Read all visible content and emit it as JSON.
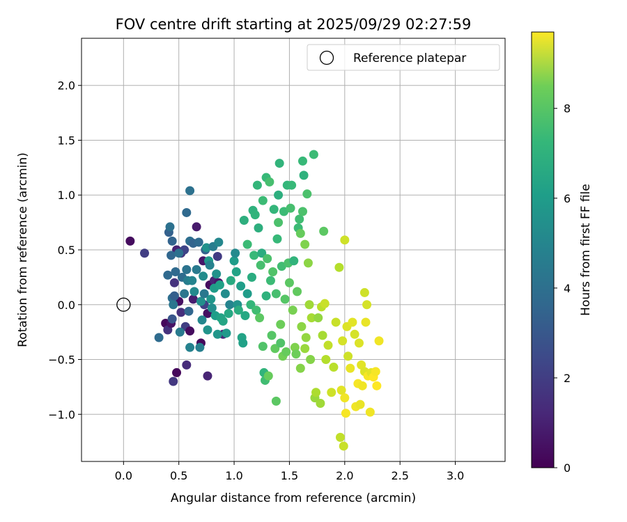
{
  "chart_data": {
    "type": "scatter",
    "title": "FOV centre drift starting at 2025/09/29 02:27:59",
    "xlabel": "Angular distance from reference (arcmin)",
    "ylabel": "Rotation from reference (arcmin)",
    "xlim": [
      -0.38,
      3.45
    ],
    "ylim": [
      -1.43,
      2.43
    ],
    "xticks": [
      0.0,
      0.5,
      1.0,
      1.5,
      2.0,
      2.5,
      3.0
    ],
    "xtick_labels": [
      "0.0",
      "0.5",
      "1.0",
      "1.5",
      "2.0",
      "2.5",
      "3.0"
    ],
    "yticks": [
      -1.0,
      -0.5,
      0.0,
      0.5,
      1.0,
      1.5,
      2.0
    ],
    "ytick_labels": [
      "−1.0",
      "−0.5",
      "0.0",
      "0.5",
      "1.0",
      "1.5",
      "2.0"
    ],
    "grid": true,
    "legend": {
      "placement": "upper-right",
      "label": "Reference platepar"
    },
    "reference_point": {
      "x": 0.0,
      "y": 0.0
    },
    "colorbar": {
      "label": "Hours from first FF file",
      "colormap": "viridis",
      "range": [
        0,
        9.7
      ],
      "ticks": [
        0,
        2,
        4,
        6,
        8
      ],
      "tick_labels": [
        "0",
        "2",
        "4",
        "6",
        "8"
      ]
    },
    "colors": {
      "axis": "#000000",
      "grid": "#b0b0b0",
      "reference_marker": "#000000"
    },
    "points": [
      {
        "x": 0.06,
        "y": 0.58,
        "c": 0.3
      },
      {
        "x": 0.19,
        "y": 0.47,
        "c": 1.8
      },
      {
        "x": 0.38,
        "y": -0.17,
        "c": 0.2
      },
      {
        "x": 0.4,
        "y": -0.23,
        "c": 1.4
      },
      {
        "x": 0.43,
        "y": -0.17,
        "c": 0.5
      },
      {
        "x": 0.45,
        "y": -0.7,
        "c": 1.6
      },
      {
        "x": 0.48,
        "y": -0.62,
        "c": 0.2
      },
      {
        "x": 0.5,
        "y": 0.03,
        "c": 0.4
      },
      {
        "x": 0.46,
        "y": 0.2,
        "c": 1.4
      },
      {
        "x": 0.48,
        "y": 0.5,
        "c": 0.9
      },
      {
        "x": 0.52,
        "y": 0.47,
        "c": 1.5
      },
      {
        "x": 0.55,
        "y": 0.5,
        "c": 2.0
      },
      {
        "x": 0.57,
        "y": -0.55,
        "c": 1.2
      },
      {
        "x": 0.56,
        "y": -0.2,
        "c": 1.8
      },
      {
        "x": 0.6,
        "y": -0.24,
        "c": 0.3
      },
      {
        "x": 0.66,
        "y": 0.71,
        "c": 0.7
      },
      {
        "x": 0.7,
        "y": -0.35,
        "c": 0.2
      },
      {
        "x": 0.72,
        "y": 0.4,
        "c": 0.6
      },
      {
        "x": 0.76,
        "y": -0.08,
        "c": 0.4
      },
      {
        "x": 0.78,
        "y": 0.18,
        "c": 0.3
      },
      {
        "x": 0.82,
        "y": 0.22,
        "c": 1.0
      },
      {
        "x": 0.85,
        "y": 0.44,
        "c": 1.7
      },
      {
        "x": 0.76,
        "y": -0.65,
        "c": 1.0
      },
      {
        "x": 0.9,
        "y": -0.27,
        "c": 1.1
      },
      {
        "x": 0.86,
        "y": 0.2,
        "c": 0.6
      },
      {
        "x": 0.63,
        "y": 0.05,
        "c": 0.8
      },
      {
        "x": 0.52,
        "y": -0.07,
        "c": 1.3
      },
      {
        "x": 0.73,
        "y": 0.0,
        "c": 1.9
      },
      {
        "x": 0.32,
        "y": -0.3,
        "c": 3.4
      },
      {
        "x": 0.4,
        "y": 0.27,
        "c": 3.3
      },
      {
        "x": 0.41,
        "y": 0.66,
        "c": 3.0
      },
      {
        "x": 0.42,
        "y": 0.71,
        "c": 3.6
      },
      {
        "x": 0.43,
        "y": 0.45,
        "c": 3.2
      },
      {
        "x": 0.44,
        "y": 0.58,
        "c": 3.1
      },
      {
        "x": 0.44,
        "y": 0.06,
        "c": 3.5
      },
      {
        "x": 0.44,
        "y": -0.13,
        "c": 2.6
      },
      {
        "x": 0.45,
        "y": 0.0,
        "c": 3.8
      },
      {
        "x": 0.46,
        "y": 0.08,
        "c": 2.9
      },
      {
        "x": 0.47,
        "y": 0.3,
        "c": 3.3
      },
      {
        "x": 0.5,
        "y": 0.47,
        "c": 3.6
      },
      {
        "x": 0.51,
        "y": -0.25,
        "c": 4.0
      },
      {
        "x": 0.53,
        "y": 0.25,
        "c": 3.4
      },
      {
        "x": 0.55,
        "y": 0.1,
        "c": 3.8
      },
      {
        "x": 0.57,
        "y": 0.84,
        "c": 3.3
      },
      {
        "x": 0.57,
        "y": 0.32,
        "c": 3.7
      },
      {
        "x": 0.58,
        "y": 0.22,
        "c": 4.1
      },
      {
        "x": 0.59,
        "y": -0.06,
        "c": 3.2
      },
      {
        "x": 0.6,
        "y": -0.39,
        "c": 4.3
      },
      {
        "x": 0.6,
        "y": 1.04,
        "c": 3.6
      },
      {
        "x": 0.6,
        "y": 0.58,
        "c": 3.5
      },
      {
        "x": 0.62,
        "y": 0.22,
        "c": 4.4
      },
      {
        "x": 0.63,
        "y": 0.56,
        "c": 3.1
      },
      {
        "x": 0.64,
        "y": 0.12,
        "c": 4.6
      },
      {
        "x": 0.66,
        "y": 0.32,
        "c": 4.0
      },
      {
        "x": 0.68,
        "y": 0.57,
        "c": 3.3
      },
      {
        "x": 0.69,
        "y": -0.39,
        "c": 4.2
      },
      {
        "x": 0.7,
        "y": 0.03,
        "c": 4.8
      },
      {
        "x": 0.71,
        "y": -0.14,
        "c": 4.5
      },
      {
        "x": 0.72,
        "y": 0.26,
        "c": 4.7
      },
      {
        "x": 0.73,
        "y": 0.1,
        "c": 3.9
      },
      {
        "x": 0.74,
        "y": 0.5,
        "c": 3.0
      },
      {
        "x": 0.75,
        "y": 0.52,
        "c": 4.9
      },
      {
        "x": 0.76,
        "y": -0.23,
        "c": 5.0
      },
      {
        "x": 0.77,
        "y": 0.4,
        "c": 5.2
      },
      {
        "x": 0.78,
        "y": 0.36,
        "c": 4.3
      },
      {
        "x": 0.79,
        "y": 0.05,
        "c": 5.1
      },
      {
        "x": 0.8,
        "y": -0.03,
        "c": 4.8
      },
      {
        "x": 0.81,
        "y": 0.53,
        "c": 4.1
      },
      {
        "x": 0.82,
        "y": 0.15,
        "c": 5.3
      },
      {
        "x": 0.83,
        "y": -0.1,
        "c": 5.4
      },
      {
        "x": 0.84,
        "y": 0.28,
        "c": 4.9
      },
      {
        "x": 0.85,
        "y": -0.27,
        "c": 5.1
      },
      {
        "x": 0.86,
        "y": 0.57,
        "c": 4.5
      },
      {
        "x": 0.87,
        "y": 0.18,
        "c": 5.5
      },
      {
        "x": 0.88,
        "y": -0.12,
        "c": 5.6
      },
      {
        "x": 0.9,
        "y": -0.15,
        "c": 5.7
      },
      {
        "x": 0.92,
        "y": 0.1,
        "c": 4.7
      },
      {
        "x": 0.93,
        "y": -0.26,
        "c": 5.2
      },
      {
        "x": 0.95,
        "y": -0.08,
        "c": 5.8
      },
      {
        "x": 0.96,
        "y": 0.0,
        "c": 4.4
      },
      {
        "x": 0.97,
        "y": 0.22,
        "c": 5.9
      },
      {
        "x": 1.0,
        "y": 0.4,
        "c": 5.3
      },
      {
        "x": 1.01,
        "y": 0.47,
        "c": 4.6
      },
      {
        "x": 1.02,
        "y": 0.3,
        "c": 5.6
      },
      {
        "x": 1.03,
        "y": 0.0,
        "c": 5.0
      },
      {
        "x": 1.04,
        "y": -0.05,
        "c": 6.0
      },
      {
        "x": 1.06,
        "y": 0.17,
        "c": 5.4
      },
      {
        "x": 1.07,
        "y": -0.3,
        "c": 5.6
      },
      {
        "x": 1.08,
        "y": -0.35,
        "c": 5.5
      },
      {
        "x": 1.09,
        "y": 0.77,
        "c": 6.1
      },
      {
        "x": 1.1,
        "y": -0.1,
        "c": 5.8
      },
      {
        "x": 1.12,
        "y": 0.1,
        "c": 5.3
      },
      {
        "x": 1.12,
        "y": 0.55,
        "c": 6.6
      },
      {
        "x": 1.15,
        "y": 0.0,
        "c": 6.4
      },
      {
        "x": 1.16,
        "y": 0.25,
        "c": 6.0
      },
      {
        "x": 1.17,
        "y": 0.86,
        "c": 6.2
      },
      {
        "x": 1.18,
        "y": 0.45,
        "c": 6.5
      },
      {
        "x": 1.19,
        "y": 0.82,
        "c": 6.3
      },
      {
        "x": 1.2,
        "y": -0.05,
        "c": 6.7
      },
      {
        "x": 1.21,
        "y": 1.09,
        "c": 6.4
      },
      {
        "x": 1.22,
        "y": 0.7,
        "c": 6.1
      },
      {
        "x": 1.23,
        "y": -0.12,
        "c": 7.2
      },
      {
        "x": 1.24,
        "y": 0.36,
        "c": 6.8
      },
      {
        "x": 1.25,
        "y": 0.47,
        "c": 6.0
      },
      {
        "x": 1.26,
        "y": 0.95,
        "c": 6.6
      },
      {
        "x": 1.26,
        "y": -0.38,
        "c": 7.0
      },
      {
        "x": 1.27,
        "y": -0.62,
        "c": 6.3
      },
      {
        "x": 1.28,
        "y": -0.69,
        "c": 6.7
      },
      {
        "x": 1.29,
        "y": 0.08,
        "c": 6.2
      },
      {
        "x": 1.29,
        "y": 1.16,
        "c": 6.5
      },
      {
        "x": 1.3,
        "y": 0.42,
        "c": 6.9
      },
      {
        "x": 1.31,
        "y": -0.65,
        "c": 7.4
      },
      {
        "x": 1.32,
        "y": 1.12,
        "c": 6.8
      },
      {
        "x": 1.33,
        "y": 0.22,
        "c": 6.6
      },
      {
        "x": 1.34,
        "y": -0.28,
        "c": 7.1
      },
      {
        "x": 1.35,
        "y": 0.3,
        "c": 7.0
      },
      {
        "x": 1.36,
        "y": 0.87,
        "c": 6.4
      },
      {
        "x": 1.37,
        "y": -0.4,
        "c": 7.3
      },
      {
        "x": 1.38,
        "y": 0.1,
        "c": 6.8
      },
      {
        "x": 1.38,
        "y": -0.88,
        "c": 7.2
      },
      {
        "x": 1.39,
        "y": 0.6,
        "c": 6.5
      },
      {
        "x": 1.4,
        "y": 0.75,
        "c": 6.9
      },
      {
        "x": 1.4,
        "y": 1.0,
        "c": 6.1
      },
      {
        "x": 1.41,
        "y": 1.29,
        "c": 6.3
      },
      {
        "x": 1.42,
        "y": -0.18,
        "c": 7.5
      },
      {
        "x": 1.42,
        "y": -0.35,
        "c": 7.0
      },
      {
        "x": 1.43,
        "y": 0.35,
        "c": 6.7
      },
      {
        "x": 1.44,
        "y": -0.47,
        "c": 7.6
      },
      {
        "x": 1.45,
        "y": 0.85,
        "c": 6.6
      },
      {
        "x": 1.46,
        "y": 0.05,
        "c": 7.1
      },
      {
        "x": 1.47,
        "y": -0.43,
        "c": 7.4
      },
      {
        "x": 1.48,
        "y": 1.09,
        "c": 6.4
      },
      {
        "x": 1.49,
        "y": 0.38,
        "c": 6.9
      },
      {
        "x": 1.5,
        "y": 0.2,
        "c": 7.2
      },
      {
        "x": 1.51,
        "y": 0.88,
        "c": 6.8
      },
      {
        "x": 1.52,
        "y": 1.09,
        "c": 6.5
      },
      {
        "x": 1.53,
        "y": -0.05,
        "c": 7.7
      },
      {
        "x": 1.54,
        "y": 0.4,
        "c": 6.3
      },
      {
        "x": 1.55,
        "y": -0.39,
        "c": 7.8
      },
      {
        "x": 1.56,
        "y": -0.45,
        "c": 7.5
      },
      {
        "x": 1.57,
        "y": 0.12,
        "c": 7.3
      },
      {
        "x": 1.58,
        "y": 0.7,
        "c": 6.6
      },
      {
        "x": 1.59,
        "y": 0.78,
        "c": 6.7
      },
      {
        "x": 1.6,
        "y": -0.58,
        "c": 7.9
      },
      {
        "x": 1.6,
        "y": 0.65,
        "c": 7.4
      },
      {
        "x": 1.61,
        "y": -0.2,
        "c": 8.0
      },
      {
        "x": 1.62,
        "y": 0.85,
        "c": 6.9
      },
      {
        "x": 1.62,
        "y": 1.31,
        "c": 6.5
      },
      {
        "x": 1.63,
        "y": 1.18,
        "c": 6.2
      },
      {
        "x": 1.64,
        "y": 0.55,
        "c": 7.8
      },
      {
        "x": 1.64,
        "y": -0.4,
        "c": 8.2
      },
      {
        "x": 1.65,
        "y": -0.3,
        "c": 8.1
      },
      {
        "x": 1.66,
        "y": 1.01,
        "c": 6.9
      },
      {
        "x": 1.67,
        "y": 0.38,
        "c": 8.0
      },
      {
        "x": 1.68,
        "y": 0.0,
        "c": 8.3
      },
      {
        "x": 1.69,
        "y": -0.5,
        "c": 7.9
      },
      {
        "x": 1.7,
        "y": -0.12,
        "c": 8.4
      },
      {
        "x": 1.72,
        "y": 1.37,
        "c": 6.6
      },
      {
        "x": 1.73,
        "y": -0.85,
        "c": 8.2
      },
      {
        "x": 1.74,
        "y": -0.8,
        "c": 8.5
      },
      {
        "x": 1.76,
        "y": -0.12,
        "c": 8.1
      },
      {
        "x": 1.78,
        "y": -0.9,
        "c": 8.3
      },
      {
        "x": 1.79,
        "y": -0.02,
        "c": 8.7
      },
      {
        "x": 1.8,
        "y": -0.28,
        "c": 8.4
      },
      {
        "x": 1.81,
        "y": 0.67,
        "c": 7.2
      },
      {
        "x": 1.82,
        "y": 0.01,
        "c": 8.9
      },
      {
        "x": 1.83,
        "y": -0.5,
        "c": 8.6
      },
      {
        "x": 1.85,
        "y": -0.37,
        "c": 8.8
      },
      {
        "x": 1.88,
        "y": -0.8,
        "c": 9.0
      },
      {
        "x": 1.9,
        "y": -0.57,
        "c": 8.7
      },
      {
        "x": 1.92,
        "y": -0.16,
        "c": 8.9
      },
      {
        "x": 1.95,
        "y": 0.34,
        "c": 8.6
      },
      {
        "x": 1.96,
        "y": -1.21,
        "c": 8.8
      },
      {
        "x": 1.97,
        "y": -0.78,
        "c": 9.3
      },
      {
        "x": 1.98,
        "y": -0.33,
        "c": 9.1
      },
      {
        "x": 1.99,
        "y": -1.29,
        "c": 8.9
      },
      {
        "x": 2.0,
        "y": 0.59,
        "c": 9.0
      },
      {
        "x": 2.0,
        "y": -0.85,
        "c": 9.5
      },
      {
        "x": 2.01,
        "y": -0.99,
        "c": 9.6
      },
      {
        "x": 2.02,
        "y": -0.2,
        "c": 9.2
      },
      {
        "x": 2.03,
        "y": -0.47,
        "c": 9.0
      },
      {
        "x": 2.05,
        "y": -0.58,
        "c": 9.4
      },
      {
        "x": 2.07,
        "y": -0.16,
        "c": 9.3
      },
      {
        "x": 2.09,
        "y": -0.27,
        "c": 9.1
      },
      {
        "x": 2.1,
        "y": -0.93,
        "c": 9.5
      },
      {
        "x": 2.12,
        "y": -0.72,
        "c": 9.6
      },
      {
        "x": 2.13,
        "y": -0.35,
        "c": 9.2
      },
      {
        "x": 2.14,
        "y": -0.91,
        "c": 9.4
      },
      {
        "x": 2.15,
        "y": -0.55,
        "c": 9.3
      },
      {
        "x": 2.16,
        "y": -0.74,
        "c": 9.5
      },
      {
        "x": 2.18,
        "y": 0.11,
        "c": 9.0
      },
      {
        "x": 2.18,
        "y": -0.61,
        "c": 9.2
      },
      {
        "x": 2.19,
        "y": -0.16,
        "c": 9.4
      },
      {
        "x": 2.2,
        "y": 0.0,
        "c": 9.1
      },
      {
        "x": 2.21,
        "y": -0.65,
        "c": 9.6
      },
      {
        "x": 2.23,
        "y": -0.98,
        "c": 9.5
      },
      {
        "x": 2.24,
        "y": -0.62,
        "c": 9.3
      },
      {
        "x": 2.26,
        "y": -0.66,
        "c": 9.7
      },
      {
        "x": 2.28,
        "y": -0.61,
        "c": 9.6
      },
      {
        "x": 2.29,
        "y": -0.74,
        "c": 9.7
      },
      {
        "x": 2.31,
        "y": -0.33,
        "c": 9.5
      }
    ]
  }
}
